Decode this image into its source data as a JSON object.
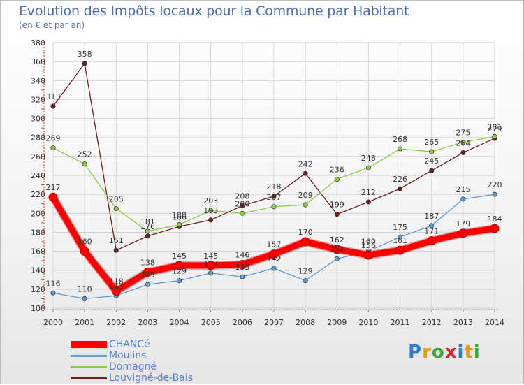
{
  "chart_data": {
    "type": "line",
    "title": "Evolution des Impôts locaux pour la Commune par Habitant",
    "subtitle": "(en € et par an)",
    "x": [
      "2000",
      "2001",
      "2002",
      "2003",
      "2004",
      "2005",
      "2006",
      "2007",
      "2008",
      "2009",
      "2010",
      "2011",
      "2012",
      "2013",
      "2014"
    ],
    "ylim": [
      100,
      380
    ],
    "yticks": [
      "100",
      "120",
      "140",
      "160",
      "180",
      "200",
      "220",
      "240",
      "260",
      "280",
      "300",
      "320",
      "340",
      "360",
      "380"
    ],
    "grid": true,
    "series": [
      {
        "name": "Louvigné-de-Bais",
        "color": "#6e1f1f",
        "values": [
          313,
          358,
          161,
          176,
          186,
          193,
          208,
          218,
          242,
          199,
          212,
          226,
          245,
          264,
          279
        ],
        "labels": [
          "313",
          "358",
          "161",
          "176",
          "186",
          "193",
          "208",
          "218",
          "242",
          "199",
          "212",
          "226",
          "245",
          "264",
          "279"
        ]
      },
      {
        "name": "Domagné",
        "color": "#88cc44",
        "values": [
          269,
          252,
          205,
          181,
          188,
          203,
          200,
          207,
          209,
          236,
          248,
          268,
          265,
          275,
          281
        ],
        "labels": [
          "269",
          "252",
          "205",
          "181",
          "188",
          "203",
          "200",
          "207",
          "209",
          "236",
          "248",
          "268",
          "265",
          "275",
          "281"
        ]
      },
      {
        "name": "Moulins",
        "color": "#5b9bd5",
        "values": [
          116,
          110,
          113,
          125,
          129,
          137,
          133,
          142,
          129,
          152,
          160,
          175,
          187,
          215,
          220
        ],
        "labels": [
          "116",
          "110",
          "113",
          "125",
          "129",
          "137",
          "133",
          "142",
          "129",
          "152",
          "160",
          "175",
          "187",
          "215",
          "220"
        ]
      },
      {
        "name": "CHANCé",
        "color": "#ff0000",
        "values": [
          217,
          160,
          118,
          138,
          145,
          145,
          146,
          157,
          170,
          162,
          156,
          161,
          171,
          179,
          184
        ],
        "labels": [
          "217",
          "160",
          "118",
          "138",
          "145",
          "145",
          "146",
          "157",
          "170",
          "162",
          "156",
          "161",
          "171",
          "179",
          "184"
        ]
      }
    ],
    "legend": [
      "CHANCé",
      "Moulins",
      "Domagné",
      "Louvigné-de-Bais"
    ]
  },
  "brand": {
    "letters": [
      "P",
      "r",
      "o",
      "x",
      "i",
      "t",
      "i"
    ],
    "colors": [
      "#2a7dd1",
      "#f29400",
      "#3aa935",
      "#e41e26",
      "#2a7dd1",
      "#f29400",
      "#3aa935"
    ]
  }
}
